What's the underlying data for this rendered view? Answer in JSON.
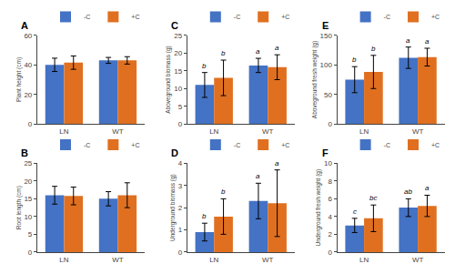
{
  "chart_data": [
    {
      "type": "bar",
      "title": "A",
      "ylabel": "Plant height (cm)",
      "categories": [
        "LN",
        "WT"
      ],
      "ylim": [
        0,
        60
      ],
      "yticks": [
        0,
        20,
        40,
        60
      ],
      "grid": false,
      "legend": "upper right",
      "series": [
        {
          "name": "-C",
          "color": "#4472C4",
          "values": [
            40.0,
            43.0
          ],
          "errors": [
            4.5,
            2.0
          ]
        },
        {
          "name": "+C",
          "color": "#E07020",
          "values": [
            41.5,
            43.0
          ],
          "errors": [
            4.5,
            2.5
          ]
        }
      ]
    },
    {
      "type": "bar",
      "title": "B",
      "ylabel": "Root length (cm)",
      "categories": [
        "LN",
        "WT"
      ],
      "ylim": [
        0,
        25
      ],
      "yticks": [
        0,
        5,
        10,
        15,
        20,
        25
      ],
      "grid": false,
      "legend": "upper right",
      "series": [
        {
          "name": "-C",
          "color": "#4472C4",
          "values": [
            16.0,
            15.0
          ],
          "errors": [
            2.5,
            2.0
          ]
        },
        {
          "name": "+C",
          "color": "#E07020",
          "values": [
            15.8,
            16.0
          ],
          "errors": [
            2.5,
            3.5
          ]
        }
      ]
    },
    {
      "type": "bar",
      "title": "C",
      "ylabel": "Aboveground biomass (g)",
      "categories": [
        "LN",
        "WT"
      ],
      "ylim": [
        0,
        25
      ],
      "yticks": [
        0,
        5,
        10,
        15,
        20,
        25
      ],
      "grid": false,
      "legend": "upper right",
      "series": [
        {
          "name": "-C",
          "color": "#4472C4",
          "values": [
            11.0,
            16.5
          ],
          "errors": [
            3.5,
            2.0
          ],
          "annotations": [
            "b",
            "a"
          ]
        },
        {
          "name": "+C",
          "color": "#E07020",
          "values": [
            13.0,
            16.0
          ],
          "errors": [
            5.0,
            3.5
          ],
          "annotations": [
            "b",
            "a"
          ]
        }
      ]
    },
    {
      "type": "bar",
      "title": "D",
      "ylabel": "Underground biomass (g)",
      "categories": [
        "LN",
        "WT"
      ],
      "ylim": [
        0,
        4
      ],
      "yticks": [
        0,
        1,
        2,
        3,
        4
      ],
      "grid": false,
      "legend": "upper right",
      "series": [
        {
          "name": "-C",
          "color": "#4472C4",
          "values": [
            0.9,
            2.3
          ],
          "errors": [
            0.4,
            0.8
          ],
          "annotations": [
            "b",
            "a"
          ]
        },
        {
          "name": "+C",
          "color": "#E07020",
          "values": [
            1.6,
            2.2
          ],
          "errors": [
            0.8,
            1.5
          ],
          "annotations": [
            "b",
            "a"
          ]
        }
      ]
    },
    {
      "type": "bar",
      "title": "E",
      "ylabel": "Aboveground fresh weight (g)",
      "categories": [
        "LN",
        "WT"
      ],
      "ylim": [
        0,
        150
      ],
      "yticks": [
        0,
        50,
        100,
        150
      ],
      "grid": false,
      "legend": "upper right",
      "series": [
        {
          "name": "-C",
          "color": "#4472C4",
          "values": [
            75.0,
            112.0
          ],
          "errors": [
            22.0,
            18.0
          ],
          "annotations": [
            "b",
            "a"
          ]
        },
        {
          "name": "+C",
          "color": "#E07020",
          "values": [
            88.0,
            113.0
          ],
          "errors": [
            28.0,
            15.0
          ],
          "annotations": [
            "b",
            "a"
          ]
        }
      ]
    },
    {
      "type": "bar",
      "title": "F",
      "ylabel": "Underground fresh weight (g)",
      "categories": [
        "LN",
        "WT"
      ],
      "ylim": [
        0,
        10
      ],
      "yticks": [
        0,
        2,
        4,
        6,
        8,
        10
      ],
      "grid": false,
      "legend": "upper right",
      "series": [
        {
          "name": "-C",
          "color": "#4472C4",
          "values": [
            3.0,
            5.0
          ],
          "errors": [
            0.8,
            1.0
          ],
          "annotations": [
            "c",
            "ab"
          ]
        },
        {
          "name": "+C",
          "color": "#E07020",
          "values": [
            3.8,
            5.2
          ],
          "errors": [
            1.5,
            1.2
          ],
          "annotations": [
            "bc",
            "a"
          ]
        }
      ]
    }
  ]
}
